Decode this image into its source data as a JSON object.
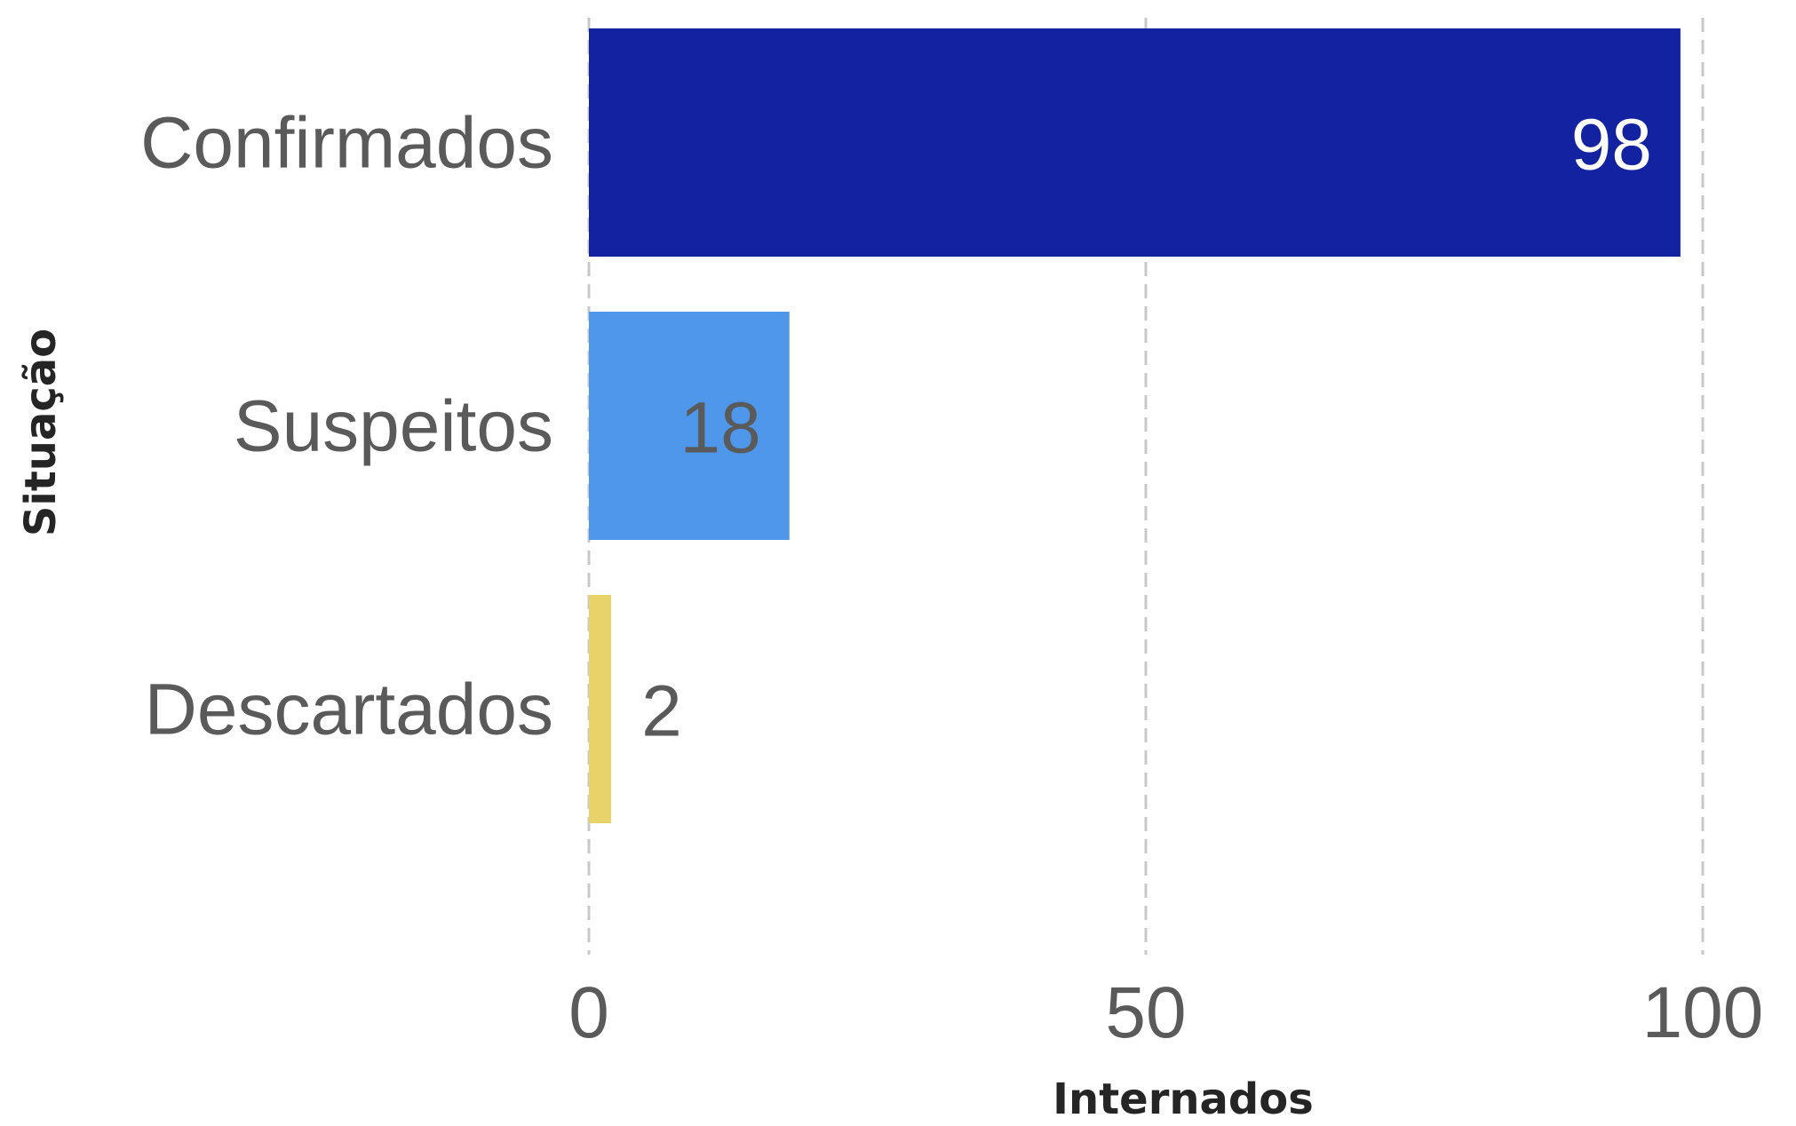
{
  "chart_data": {
    "type": "bar",
    "orientation": "horizontal",
    "categories": [
      "Confirmados",
      "Suspeitos",
      "Descartados"
    ],
    "values": [
      98,
      18,
      2
    ],
    "colors": [
      "#1222a0",
      "#4f97ea",
      "#e8d26a"
    ],
    "value_label_colors": [
      "#ffffff",
      "#5a5a5a",
      "#5a5a5a"
    ],
    "xlabel": "Internados",
    "ylabel": "Situação",
    "xlim": [
      0,
      100
    ],
    "xticks": [
      "0",
      "50",
      "100"
    ],
    "grid": true,
    "legend": "none"
  }
}
